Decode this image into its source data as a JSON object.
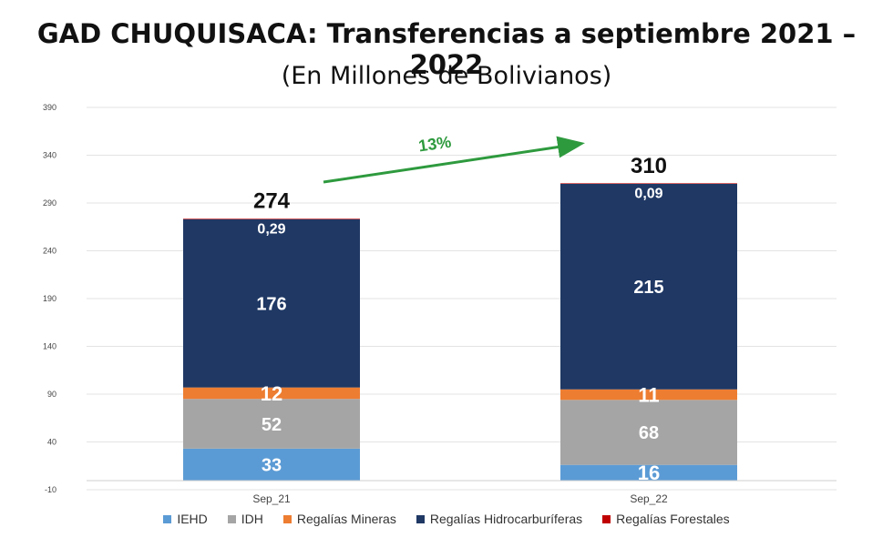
{
  "chart_data": {
    "type": "bar",
    "stacked": true,
    "title": "GAD CHUQUISACA: Transferencias a septiembre 2021 – 2022",
    "subtitle": "(En Millones de Bolivianos)",
    "categories": [
      "Sep_21",
      "Sep_22"
    ],
    "totals": [
      "274",
      "310"
    ],
    "growth_label": "13%",
    "ylim": [
      -10,
      390
    ],
    "yticks": [
      "390",
      "340",
      "290",
      "240",
      "190",
      "140",
      "90",
      "40",
      "-10"
    ],
    "grid": true,
    "legend_position": "bottom",
    "series": [
      {
        "name": "IEHD",
        "color": "#5b9bd5",
        "values": [
          33,
          16
        ],
        "labels": [
          "33",
          "16"
        ]
      },
      {
        "name": "IDH",
        "color": "#a5a5a5",
        "values": [
          52,
          68
        ],
        "labels": [
          "52",
          "68"
        ]
      },
      {
        "name": "Regalías Mineras",
        "color": "#ed7d31",
        "values": [
          12,
          11
        ],
        "labels": [
          "12",
          "11"
        ]
      },
      {
        "name": "Regalías Hidrocarburíferas",
        "color": "#1f3864",
        "values": [
          176,
          215
        ],
        "labels": [
          "176",
          "215"
        ]
      },
      {
        "name": "Regalías Forestales",
        "color": "#c00000",
        "values": [
          0.29,
          0.09
        ],
        "labels": [
          "0,29",
          "0,09"
        ]
      }
    ]
  }
}
